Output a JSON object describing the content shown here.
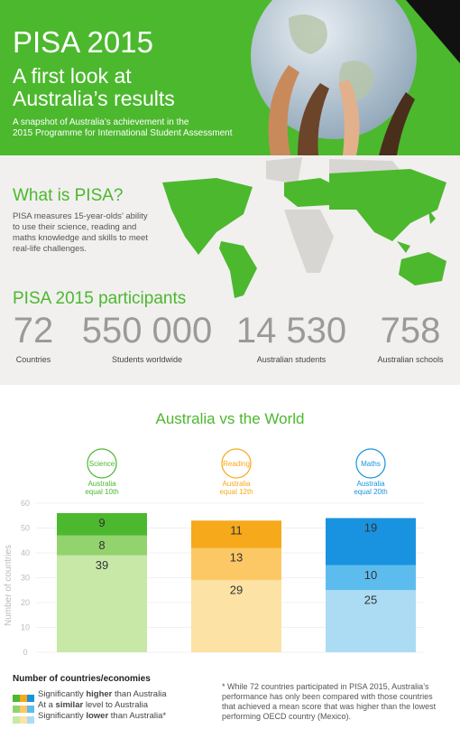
{
  "header": {
    "title": "PISA 2015",
    "subtitle": [
      "A first look at",
      "Australia’s results"
    ],
    "description": [
      "A snapshot of Australia’s achievement in the",
      "2015 Programme for International Student Assessment"
    ]
  },
  "about": {
    "heading": "What is PISA?",
    "text": [
      "PISA measures 15-year-olds’ ability",
      "to use their science, reading and",
      "maths knowledge and skills to meet",
      "real-life challenges."
    ]
  },
  "participants": {
    "heading": "PISA 2015 participants",
    "stats": [
      {
        "value": "72",
        "label": "Countries"
      },
      {
        "value": "550 000",
        "label": "Students worldwide"
      },
      {
        "value": "14 530",
        "label": "Australian students"
      },
      {
        "value": "758",
        "label": "Australian schools"
      }
    ]
  },
  "chart_data": {
    "type": "stacked-bar",
    "title": "Australia vs the World",
    "ylabel": "Number of countries",
    "categories": [
      "Science",
      "Reading",
      "Maths"
    ],
    "annotations": [
      [
        "Australia",
        "equal 10th"
      ],
      [
        "Australia",
        "equal 12th"
      ],
      [
        "Australia",
        "equal 20th"
      ]
    ],
    "ylim": [
      0,
      60
    ],
    "yticks": [
      0,
      10,
      20,
      30,
      40,
      50,
      60
    ],
    "grid": true,
    "legend_title": "Number of countries/economies",
    "series": [
      {
        "name": "Significantly lower than Australia*",
        "emphasis": "lower",
        "colors": [
          "#c8e8a8",
          "#fde2a6",
          "#abdcf4"
        ],
        "values": [
          39,
          29,
          25
        ]
      },
      {
        "name": "At a similar level to Australia",
        "emphasis": "similar",
        "colors": [
          "#93d36d",
          "#fcc865",
          "#5dbcee"
        ],
        "values": [
          8,
          13,
          10
        ]
      },
      {
        "name": "Significantly higher than Australia",
        "emphasis": "higher",
        "colors": [
          "#4cb82e",
          "#f6a91b",
          "#1993df"
        ],
        "values": [
          9,
          11,
          19
        ]
      }
    ]
  },
  "footnote": "* While 72 countries participated in PISA 2015, Australia’s performance has only been compared with those countries that achieved a mean score that was higher than the lowest performing OECD country (Mexico)."
}
